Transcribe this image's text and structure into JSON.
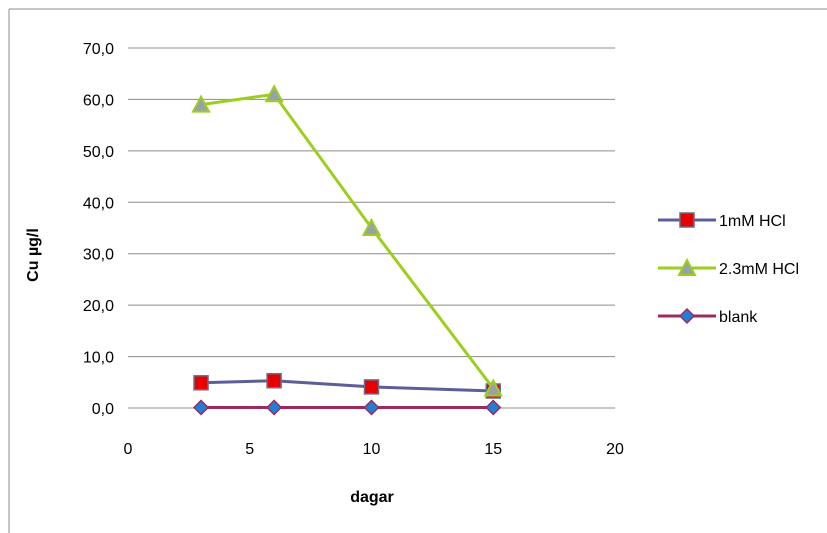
{
  "chart_data": {
    "type": "line",
    "xlabel": "dagar",
    "ylabel": "Cu   µg/l",
    "xlim": [
      0,
      20
    ],
    "ylim": [
      0,
      70
    ],
    "x_ticks": [
      "0",
      "5",
      "10",
      "15",
      "20"
    ],
    "y_ticks": [
      "0,0",
      "10,0",
      "20,0",
      "30,0",
      "40,0",
      "50,0",
      "60,0",
      "70,0"
    ],
    "grid": "horizontal",
    "legend_position": "right",
    "series": [
      {
        "name": "1mM HCl",
        "x": [
          3,
          6,
          10,
          15
        ],
        "y": [
          4.9,
          5.3,
          4.1,
          3.3
        ],
        "line_color": "#5b5f97",
        "marker": "square",
        "marker_color": "#e60000"
      },
      {
        "name": "2.3mM HCl",
        "x": [
          3,
          6,
          10,
          15
        ],
        "y": [
          59.0,
          61.0,
          35.0,
          3.8
        ],
        "line_color": "#9bcf1f",
        "marker": "triangle",
        "marker_color": "#9aa0a8"
      },
      {
        "name": "blank",
        "x": [
          3,
          6,
          10,
          15
        ],
        "y": [
          0.1,
          0.1,
          0.1,
          0.1
        ],
        "line_color": "#9b2b5f",
        "marker": "diamond",
        "marker_color": "#1e7fd6"
      }
    ]
  }
}
